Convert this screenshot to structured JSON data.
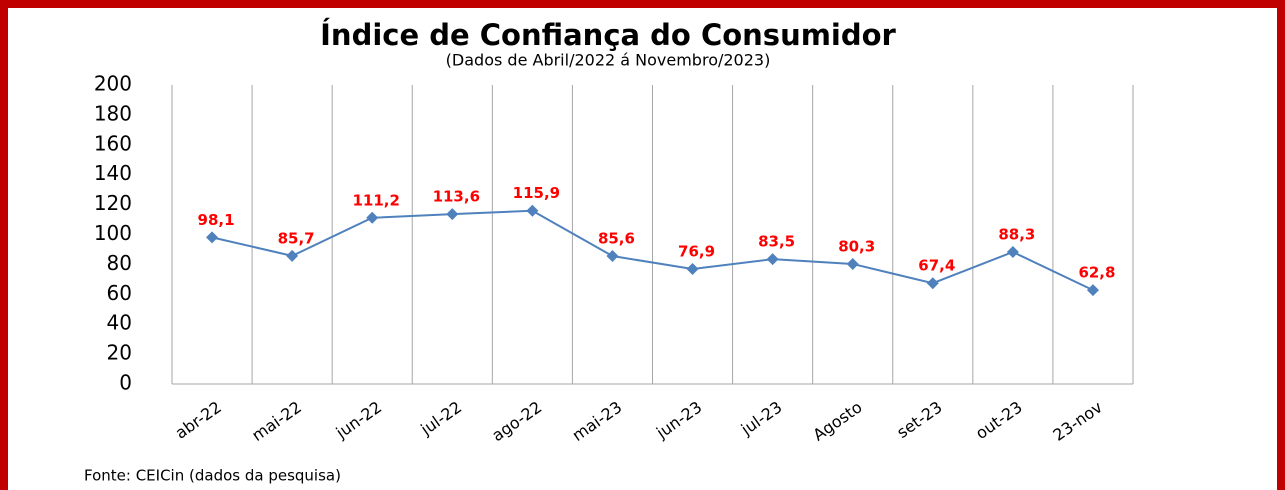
{
  "chart_data": {
    "type": "line",
    "title": "Índice de Confiança do Consumidor",
    "subtitle": "(Dados de  Abril/2022 á Novembro/2023)",
    "source": "Fonte: CEICin (dados da pesquisa)",
    "categories": [
      "abr-22",
      "mai-22",
      "jun-22",
      "jul-22",
      "ago-22",
      "mai-23",
      "jun-23",
      "jul-23",
      "Agosto",
      "set-23",
      "out-23",
      "23-nov"
    ],
    "series": [
      {
        "name": "Índice de Confiança do Consumidor",
        "color": "#4f81bd",
        "values": [
          98.1,
          85.7,
          111.2,
          113.6,
          115.9,
          85.6,
          76.9,
          83.5,
          80.3,
          67.4,
          88.3,
          62.8
        ],
        "value_labels": [
          "98,1",
          "85,7",
          "111,2",
          "113,6",
          "115,9",
          "85,6",
          "76,9",
          "83,5",
          "80,3",
          "67,4",
          "88,3",
          "62,8"
        ],
        "label_color": "#ff0000"
      }
    ],
    "ylim": [
      0,
      200
    ],
    "yticks": [
      0,
      20,
      40,
      60,
      80,
      100,
      120,
      140,
      160,
      180,
      200
    ]
  }
}
